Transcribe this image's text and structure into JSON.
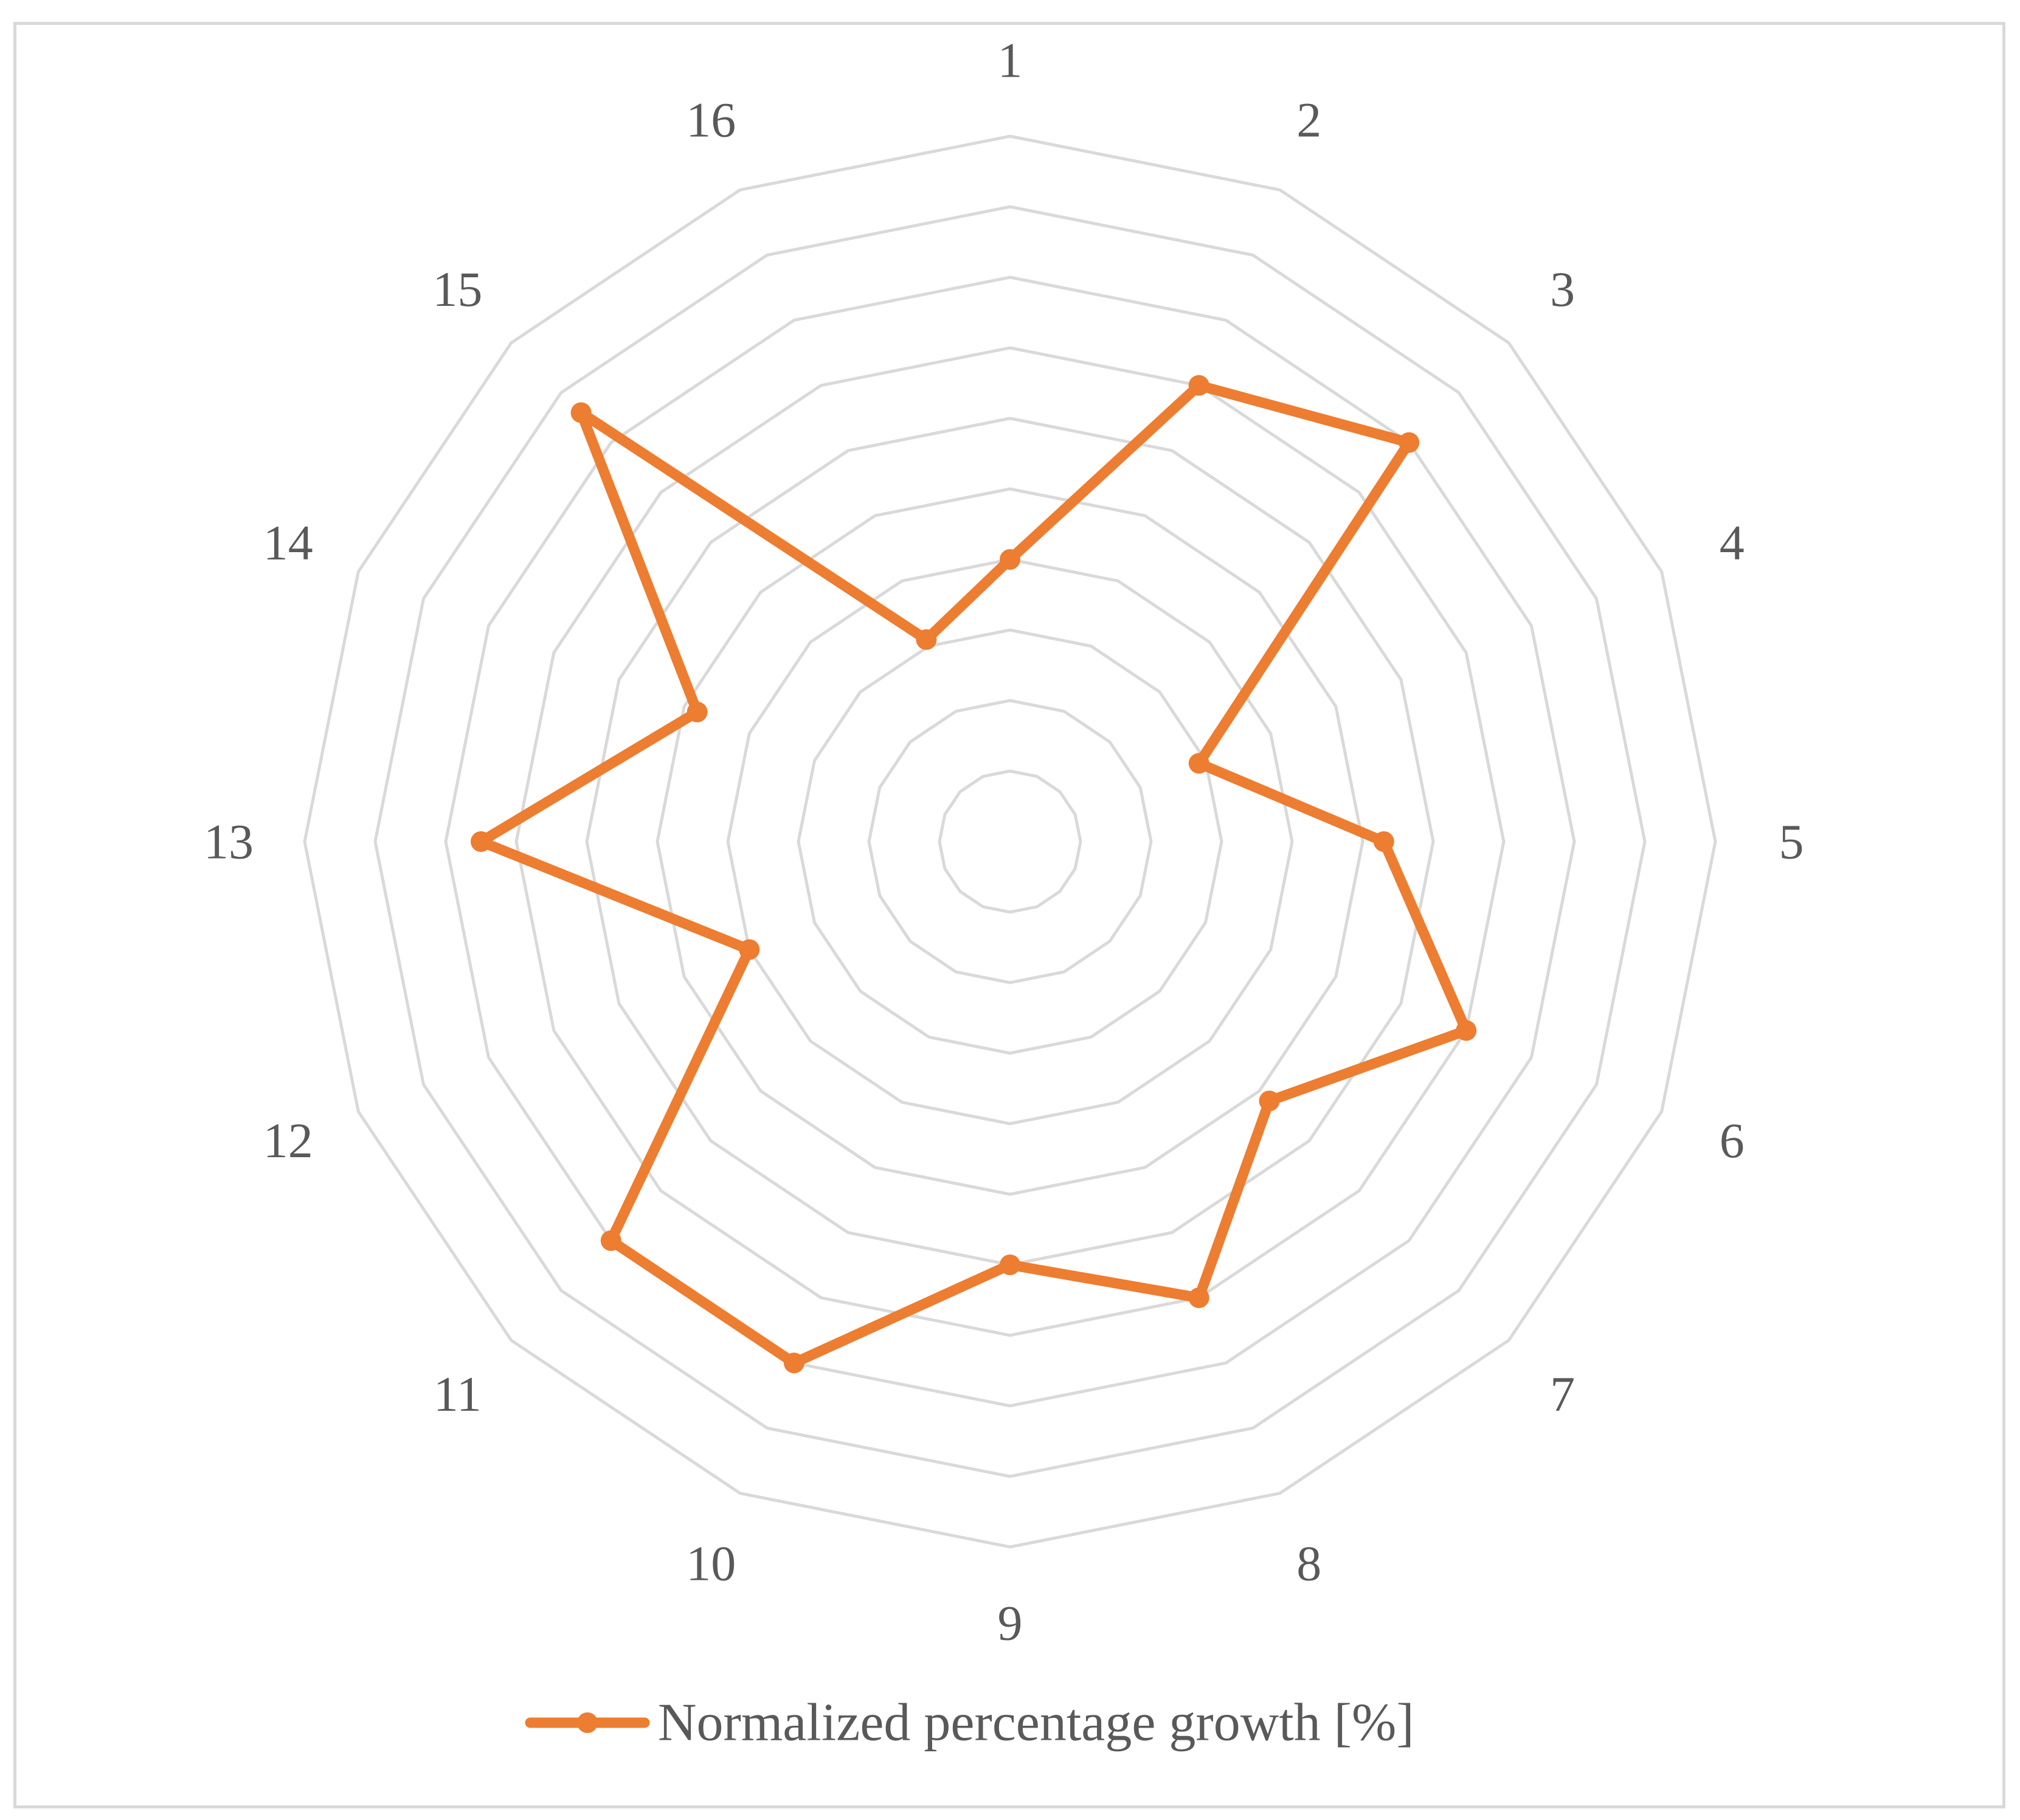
{
  "chart_data": {
    "type": "radar",
    "categories": [
      "1",
      "2",
      "3",
      "4",
      "5",
      "6",
      "7",
      "8",
      "9",
      "10",
      "11",
      "12",
      "13",
      "14",
      "15",
      "16"
    ],
    "series": [
      {
        "name": "Normalized percentage growth [%]",
        "values": [
          4,
          7,
          8,
          2.9,
          5.3,
          7,
          5.2,
          7,
          6,
          8,
          8,
          4,
          7.5,
          4.8,
          8.6,
          3.1
        ]
      }
    ],
    "rlim": [
      0,
      10
    ],
    "grid_rings": 10,
    "legend_position": "bottom",
    "colors": {
      "series": "#ed7d31",
      "grid": "#d9d9d9",
      "text": "#595959",
      "border": "#d9d9d9"
    }
  }
}
